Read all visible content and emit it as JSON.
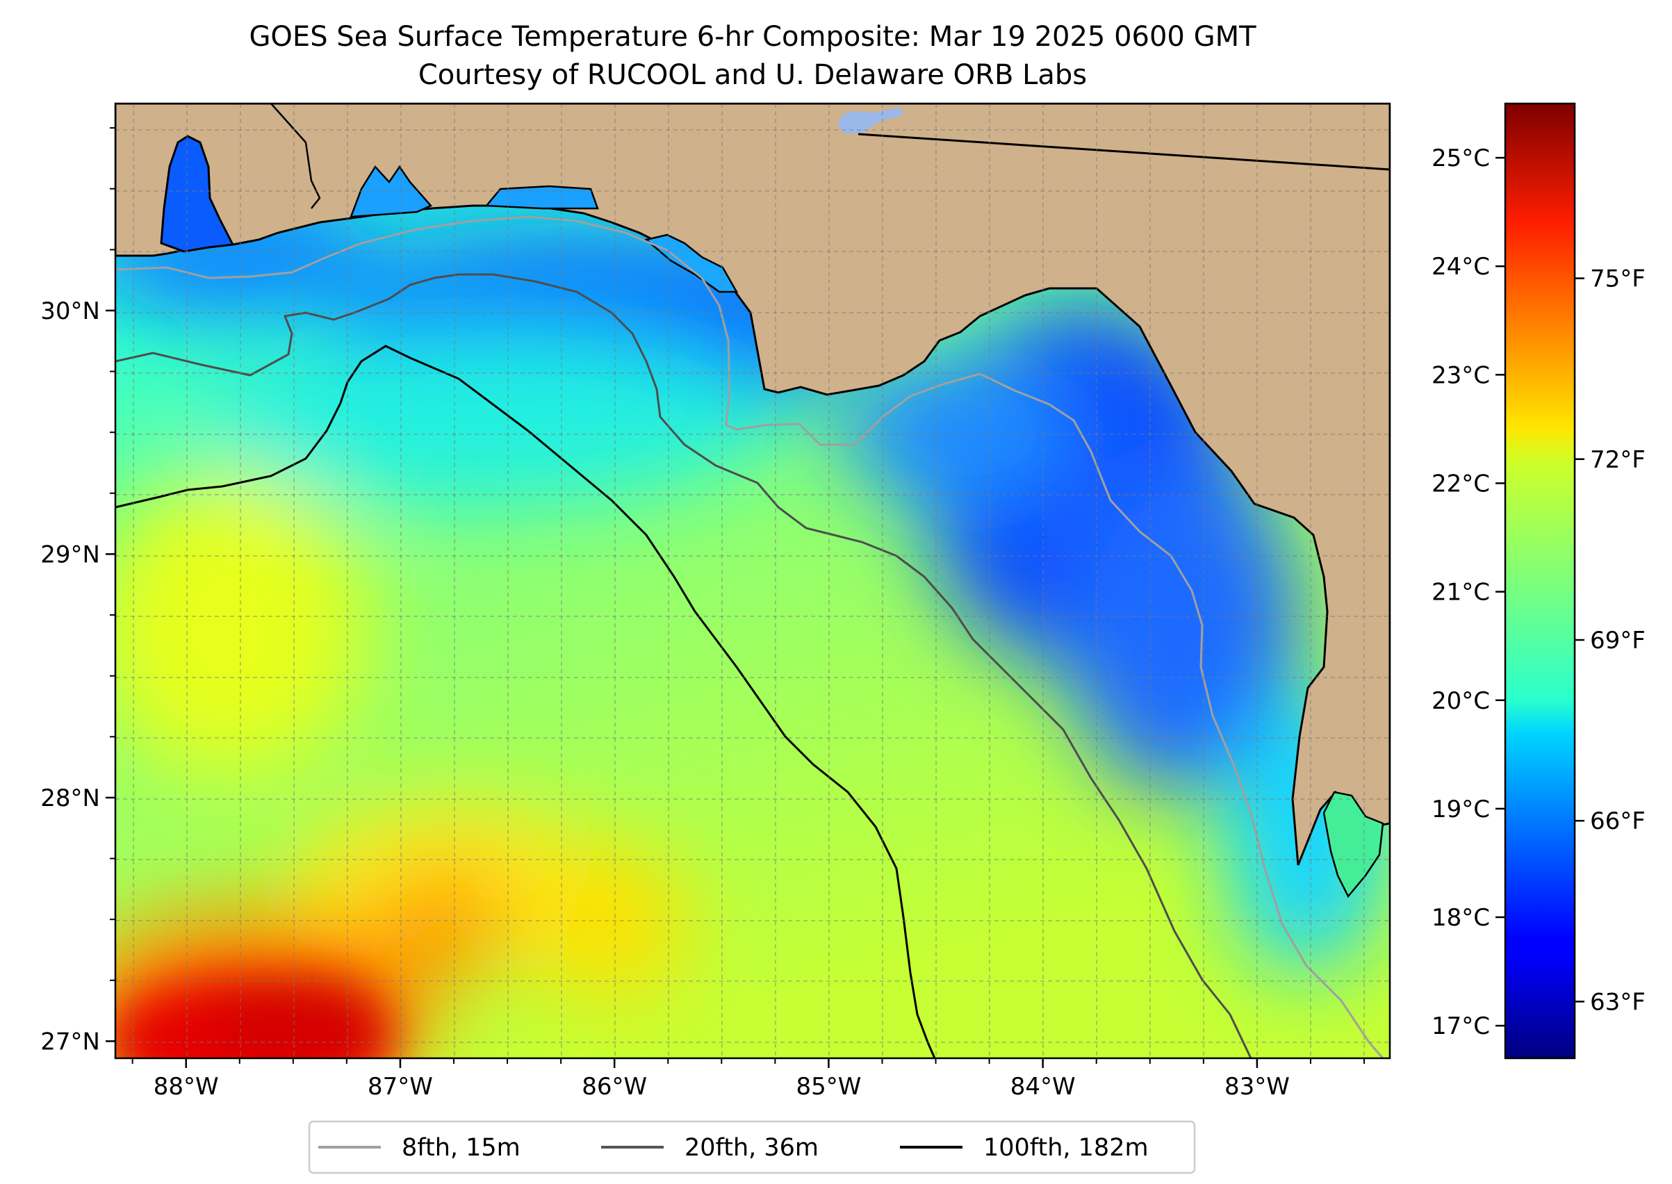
{
  "title": "GOES Sea Surface Temperature 6-hr Composite: Mar 19 2025 0600 GMT",
  "subtitle": "Courtesy of RUCOOL and U. Delaware ORB Labs",
  "map": {
    "lon_range": [
      -88.33,
      -82.38
    ],
    "lat_range": [
      26.93,
      30.85
    ],
    "lon_ticks": [
      {
        "value": -88,
        "label": "88°W"
      },
      {
        "value": -87,
        "label": "87°W"
      },
      {
        "value": -86,
        "label": "86°W"
      },
      {
        "value": -85,
        "label": "85°W"
      },
      {
        "value": -84,
        "label": "84°W"
      },
      {
        "value": -83,
        "label": "83°W"
      }
    ],
    "lat_ticks": [
      {
        "value": 27,
        "label": "27°N"
      },
      {
        "value": 28,
        "label": "28°N"
      },
      {
        "value": 29,
        "label": "29°N"
      },
      {
        "value": 30,
        "label": "30°N"
      }
    ],
    "gridlines": "dashed, 0.25° spacing",
    "land_color": "#cfb18b",
    "colormap": "jet"
  },
  "colorbar": {
    "celsius_range": [
      16.7,
      25.5
    ],
    "celsius_ticks": [
      {
        "value": 17,
        "label": "17°C"
      },
      {
        "value": 18,
        "label": "18°C"
      },
      {
        "value": 19,
        "label": "19°C"
      },
      {
        "value": 20,
        "label": "20°C"
      },
      {
        "value": 21,
        "label": "21°C"
      },
      {
        "value": 22,
        "label": "22°C"
      },
      {
        "value": 23,
        "label": "23°C"
      },
      {
        "value": 24,
        "label": "24°C"
      },
      {
        "value": 25,
        "label": "25°C"
      }
    ],
    "fahrenheit_ticks": [
      {
        "value": 63,
        "label": "63°F"
      },
      {
        "value": 66,
        "label": "66°F"
      },
      {
        "value": 69,
        "label": "69°F"
      },
      {
        "value": 72,
        "label": "72°F"
      },
      {
        "value": 75,
        "label": "75°F"
      }
    ]
  },
  "legend": {
    "placement": "bottom-center",
    "items": [
      {
        "label": "8fth, 15m",
        "color": "#a0a0a0"
      },
      {
        "label": "20fth, 36m",
        "color": "#555555"
      },
      {
        "label": "100fth, 182m",
        "color": "#000000"
      }
    ]
  }
}
